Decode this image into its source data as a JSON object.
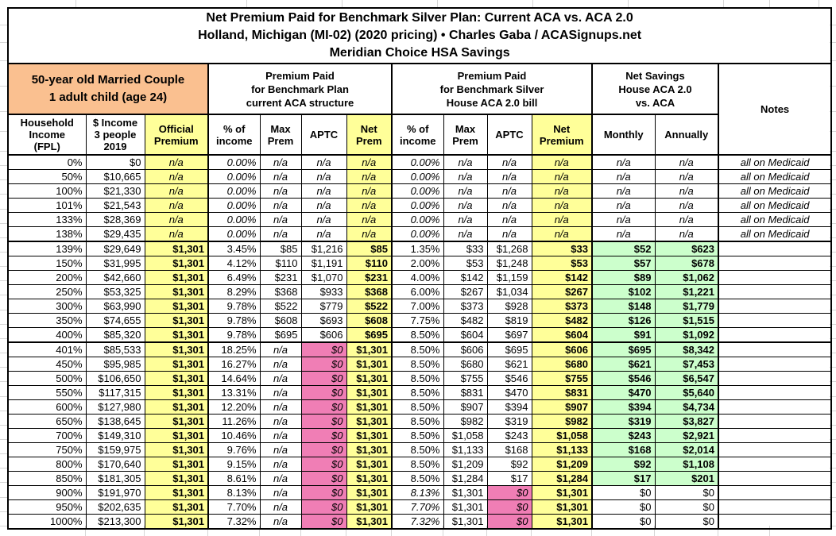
{
  "title": {
    "line1": "Net Premium Paid for Benchmark Silver Plan: Current ACA vs. ACA 2.0",
    "line2": "Holland, Michigan (MI-02) (2020 pricing) • Charles Gaba / ACASignups.net",
    "line3": "Meridian Choice HSA Savings"
  },
  "groups": {
    "household": [
      "50-year old Married Couple",
      "1 adult child (age 24)"
    ],
    "aca": [
      "Premium Paid",
      "for Benchmark Plan",
      "current ACA structure"
    ],
    "house": [
      "Premium Paid",
      "for Benchmark Silver",
      "House ACA 2.0 bill"
    ],
    "savings": [
      "Net Savings",
      "House ACA 2.0",
      "vs. ACA"
    ],
    "notes": "Notes"
  },
  "columns": [
    {
      "key": "fpl",
      "label": [
        "Household",
        "Income",
        "(FPL)"
      ]
    },
    {
      "key": "income",
      "label": [
        "$ Income",
        "3 people",
        "2019"
      ]
    },
    {
      "key": "official-premium",
      "label": [
        "Official",
        "Premium"
      ]
    },
    {
      "key": "pct-income-aca",
      "label": [
        "% of",
        "income"
      ]
    },
    {
      "key": "max-prem-aca",
      "label": [
        "Max",
        "Prem"
      ]
    },
    {
      "key": "aptc-aca",
      "label": [
        "APTC"
      ]
    },
    {
      "key": "net-prem-aca",
      "label": [
        "Net",
        "Prem"
      ]
    },
    {
      "key": "pct-income-house",
      "label": [
        "% of",
        "income"
      ]
    },
    {
      "key": "max-prem-house",
      "label": [
        "Max",
        "Prem"
      ]
    },
    {
      "key": "aptc-house",
      "label": [
        "APTC"
      ]
    },
    {
      "key": "net-premium-house",
      "label": [
        "Net",
        "Premium"
      ]
    },
    {
      "key": "monthly-savings",
      "label": [
        "Monthly"
      ]
    },
    {
      "key": "annual-savings",
      "label": [
        "Annually"
      ]
    }
  ],
  "rows": [
    {
      "type": "medicaid",
      "cells": [
        "0%",
        "$0",
        "n/a",
        "0.00%",
        "n/a",
        "n/a",
        "n/a",
        "0.00%",
        "n/a",
        "n/a",
        "n/a",
        "n/a",
        "n/a",
        "all on Medicaid"
      ]
    },
    {
      "type": "medicaid",
      "cells": [
        "50%",
        "$10,665",
        "n/a",
        "0.00%",
        "n/a",
        "n/a",
        "n/a",
        "0.00%",
        "n/a",
        "n/a",
        "n/a",
        "n/a",
        "n/a",
        "all on Medicaid"
      ]
    },
    {
      "type": "medicaid",
      "cells": [
        "100%",
        "$21,330",
        "n/a",
        "0.00%",
        "n/a",
        "n/a",
        "n/a",
        "0.00%",
        "n/a",
        "n/a",
        "n/a",
        "n/a",
        "n/a",
        "all on Medicaid"
      ]
    },
    {
      "type": "medicaid",
      "cells": [
        "101%",
        "$21,543",
        "n/a",
        "0.00%",
        "n/a",
        "n/a",
        "n/a",
        "0.00%",
        "n/a",
        "n/a",
        "n/a",
        "n/a",
        "n/a",
        "all on Medicaid"
      ]
    },
    {
      "type": "medicaid",
      "cells": [
        "133%",
        "$28,369",
        "n/a",
        "0.00%",
        "n/a",
        "n/a",
        "n/a",
        "0.00%",
        "n/a",
        "n/a",
        "n/a",
        "n/a",
        "n/a",
        "all on Medicaid"
      ]
    },
    {
      "type": "medicaid",
      "cells": [
        "138%",
        "$29,435",
        "n/a",
        "0.00%",
        "n/a",
        "n/a",
        "n/a",
        "0.00%",
        "n/a",
        "n/a",
        "n/a",
        "n/a",
        "n/a",
        "all on Medicaid"
      ]
    },
    {
      "type": "aptc",
      "cells": [
        "139%",
        "$29,649",
        "$1,301",
        "3.45%",
        "$85",
        "$1,216",
        "$85",
        "1.35%",
        "$33",
        "$1,268",
        "$33",
        "$52",
        "$623",
        ""
      ]
    },
    {
      "type": "aptc",
      "cells": [
        "150%",
        "$31,995",
        "$1,301",
        "4.12%",
        "$110",
        "$1,191",
        "$110",
        "2.00%",
        "$53",
        "$1,248",
        "$53",
        "$57",
        "$678",
        ""
      ]
    },
    {
      "type": "aptc",
      "cells": [
        "200%",
        "$42,660",
        "$1,301",
        "6.49%",
        "$231",
        "$1,070",
        "$231",
        "4.00%",
        "$142",
        "$1,159",
        "$142",
        "$89",
        "$1,062",
        ""
      ]
    },
    {
      "type": "aptc",
      "cells": [
        "250%",
        "$53,325",
        "$1,301",
        "8.29%",
        "$368",
        "$933",
        "$368",
        "6.00%",
        "$267",
        "$1,034",
        "$267",
        "$102",
        "$1,221",
        ""
      ]
    },
    {
      "type": "aptc",
      "cells": [
        "300%",
        "$63,990",
        "$1,301",
        "9.78%",
        "$522",
        "$779",
        "$522",
        "7.00%",
        "$373",
        "$928",
        "$373",
        "$148",
        "$1,779",
        ""
      ]
    },
    {
      "type": "aptc",
      "cells": [
        "350%",
        "$74,655",
        "$1,301",
        "9.78%",
        "$608",
        "$693",
        "$608",
        "7.75%",
        "$482",
        "$819",
        "$482",
        "$126",
        "$1,515",
        ""
      ]
    },
    {
      "type": "aptc",
      "cells": [
        "400%",
        "$85,320",
        "$1,301",
        "9.78%",
        "$695",
        "$606",
        "$695",
        "8.50%",
        "$604",
        "$697",
        "$604",
        "$91",
        "$1,092",
        ""
      ]
    },
    {
      "type": "capped",
      "cells": [
        "401%",
        "$85,533",
        "$1,301",
        "18.25%",
        "n/a",
        "$0",
        "$1,301",
        "8.50%",
        "$606",
        "$695",
        "$606",
        "$695",
        "$8,342",
        ""
      ]
    },
    {
      "type": "capped",
      "cells": [
        "450%",
        "$95,985",
        "$1,301",
        "16.27%",
        "n/a",
        "$0",
        "$1,301",
        "8.50%",
        "$680",
        "$621",
        "$680",
        "$621",
        "$7,453",
        ""
      ]
    },
    {
      "type": "capped",
      "cells": [
        "500%",
        "$106,650",
        "$1,301",
        "14.64%",
        "n/a",
        "$0",
        "$1,301",
        "8.50%",
        "$755",
        "$546",
        "$755",
        "$546",
        "$6,547",
        ""
      ]
    },
    {
      "type": "capped",
      "cells": [
        "550%",
        "$117,315",
        "$1,301",
        "13.31%",
        "n/a",
        "$0",
        "$1,301",
        "8.50%",
        "$831",
        "$470",
        "$831",
        "$470",
        "$5,640",
        ""
      ]
    },
    {
      "type": "capped",
      "cells": [
        "600%",
        "$127,980",
        "$1,301",
        "12.20%",
        "n/a",
        "$0",
        "$1,301",
        "8.50%",
        "$907",
        "$394",
        "$907",
        "$394",
        "$4,734",
        ""
      ]
    },
    {
      "type": "capped",
      "cells": [
        "650%",
        "$138,645",
        "$1,301",
        "11.26%",
        "n/a",
        "$0",
        "$1,301",
        "8.50%",
        "$982",
        "$319",
        "$982",
        "$319",
        "$3,827",
        ""
      ]
    },
    {
      "type": "capped",
      "cells": [
        "700%",
        "$149,310",
        "$1,301",
        "10.46%",
        "n/a",
        "$0",
        "$1,301",
        "8.50%",
        "$1,058",
        "$243",
        "$1,058",
        "$243",
        "$2,921",
        ""
      ]
    },
    {
      "type": "capped",
      "cells": [
        "750%",
        "$159,975",
        "$1,301",
        "9.76%",
        "n/a",
        "$0",
        "$1,301",
        "8.50%",
        "$1,133",
        "$168",
        "$1,133",
        "$168",
        "$2,014",
        ""
      ]
    },
    {
      "type": "capped",
      "cells": [
        "800%",
        "$170,640",
        "$1,301",
        "9.15%",
        "n/a",
        "$0",
        "$1,301",
        "8.50%",
        "$1,209",
        "$92",
        "$1,209",
        "$92",
        "$1,108",
        ""
      ]
    },
    {
      "type": "capped",
      "cells": [
        "850%",
        "$181,305",
        "$1,301",
        "8.61%",
        "n/a",
        "$0",
        "$1,301",
        "8.50%",
        "$1,284",
        "$17",
        "$1,284",
        "$17",
        "$201",
        ""
      ]
    },
    {
      "type": "full",
      "cells": [
        "900%",
        "$191,970",
        "$1,301",
        "8.13%",
        "n/a",
        "$0",
        "$1,301",
        "8.13%",
        "$1,301",
        "$0",
        "$1,301",
        "$0",
        "$0",
        ""
      ]
    },
    {
      "type": "full",
      "cells": [
        "950%",
        "$202,635",
        "$1,301",
        "7.70%",
        "n/a",
        "$0",
        "$1,301",
        "7.70%",
        "$1,301",
        "$0",
        "$1,301",
        "$0",
        "$0",
        ""
      ]
    },
    {
      "type": "full",
      "cells": [
        "1000%",
        "$213,300",
        "$1,301",
        "7.32%",
        "n/a",
        "$0",
        "$1,301",
        "7.32%",
        "$1,301",
        "$0",
        "$1,301",
        "$0",
        "$0",
        ""
      ]
    }
  ],
  "colors": {
    "subject_header": "#FAC090",
    "premium_highlight": "#FFFF99",
    "zero_aptc": "#F07EB5",
    "savings": "#CCFFCC"
  }
}
